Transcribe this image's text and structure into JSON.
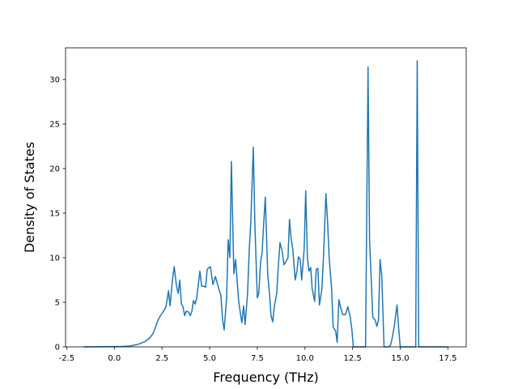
{
  "chart_data": {
    "type": "line",
    "xlabel": "Frequency (THz)",
    "ylabel": "Density of States",
    "xlim": [
      -2.56,
      18.46
    ],
    "ylim": [
      0,
      33.55
    ],
    "xticks": [
      {
        "value": -2.5,
        "label": "-2.5"
      },
      {
        "value": 0,
        "label": "0.0"
      },
      {
        "value": 2.5,
        "label": "2.5"
      },
      {
        "value": 5,
        "label": "5.0"
      },
      {
        "value": 7.5,
        "label": "7.5"
      },
      {
        "value": 10,
        "label": "10.0"
      },
      {
        "value": 12.5,
        "label": "12.5"
      },
      {
        "value": 15,
        "label": "15.0"
      },
      {
        "value": 17.5,
        "label": "17.5"
      }
    ],
    "yticks": [
      0,
      5,
      10,
      15,
      20,
      25,
      30
    ],
    "grid": false,
    "series": [
      {
        "color": "#1f77b4",
        "x": [
          -1.61,
          0.42,
          0.85,
          1.27,
          1.61,
          1.86,
          2.03,
          2.16,
          2.29,
          2.42,
          2.58,
          2.71,
          2.84,
          2.92,
          3.05,
          3.14,
          3.26,
          3.35,
          3.43,
          3.52,
          3.6,
          3.69,
          3.77,
          3.9,
          3.98,
          4.07,
          4.15,
          4.24,
          4.32,
          4.49,
          4.58,
          4.7,
          4.79,
          4.87,
          5.04,
          5.17,
          5.3,
          5.51,
          5.59,
          5.68,
          5.76,
          5.89,
          5.97,
          6.06,
          6.14,
          6.27,
          6.36,
          6.44,
          6.53,
          6.61,
          6.69,
          6.78,
          6.86,
          6.99,
          7.08,
          7.16,
          7.29,
          7.37,
          7.5,
          7.58,
          7.67,
          7.75,
          7.84,
          7.92,
          8.05,
          8.14,
          8.22,
          8.31,
          8.39,
          8.52,
          8.6,
          8.69,
          8.81,
          8.9,
          8.98,
          9.11,
          9.19,
          9.28,
          9.36,
          9.49,
          9.58,
          9.66,
          9.75,
          9.83,
          9.96,
          10.04,
          10.13,
          10.21,
          10.3,
          10.38,
          10.51,
          10.59,
          10.68,
          10.76,
          10.89,
          10.97,
          11.1,
          11.19,
          11.27,
          11.4,
          11.48,
          11.61,
          11.69,
          11.78,
          11.86,
          11.99,
          12.12,
          12.25,
          12.37,
          12.46,
          12.54,
          13.18,
          13.31,
          13.39,
          13.56,
          13.69,
          13.77,
          13.86,
          13.94,
          14.03,
          14.15,
          14.41,
          14.49,
          14.58,
          14.7,
          14.83,
          14.92,
          15.0,
          15.81,
          15.89,
          15.97,
          17.5
        ],
        "values": [
          0,
          0.05,
          0.1,
          0.3,
          0.6,
          1.0,
          1.5,
          2.2,
          3.0,
          3.5,
          4.0,
          4.5,
          6.3,
          4.6,
          7.5,
          9.0,
          6.8,
          6.0,
          7.5,
          4.8,
          4.5,
          3.5,
          4.0,
          3.9,
          3.5,
          4.0,
          5.2,
          4.8,
          5.5,
          8.5,
          6.8,
          6.8,
          6.7,
          8.7,
          9.0,
          7.0,
          7.9,
          6.3,
          5.8,
          3.0,
          1.9,
          5.5,
          12.0,
          10.0,
          20.8,
          8.2,
          9.8,
          7.5,
          5.0,
          3.8,
          2.7,
          4.6,
          2.5,
          6.0,
          11.0,
          14.0,
          22.4,
          14.0,
          5.5,
          6.0,
          9.5,
          10.5,
          14.0,
          16.8,
          8.0,
          6.0,
          3.5,
          2.8,
          4.5,
          6.0,
          9.0,
          11.7,
          10.7,
          9.2,
          9.5,
          10.0,
          14.3,
          12.0,
          11.0,
          7.5,
          8.5,
          10.1,
          9.8,
          7.5,
          11.0,
          17.5,
          10.0,
          8.5,
          8.9,
          6.5,
          5.1,
          8.7,
          8.8,
          4.7,
          6.5,
          10.0,
          17.2,
          14.0,
          10.0,
          6.5,
          2.2,
          1.8,
          0.5,
          5.3,
          4.5,
          3.6,
          3.6,
          4.5,
          3.4,
          2.0,
          0,
          0,
          31.4,
          12.0,
          3.3,
          3.0,
          2.3,
          3.0,
          9.8,
          8.0,
          0,
          0,
          0.2,
          1.0,
          2.5,
          4.7,
          2.0,
          0,
          0,
          32.1,
          0,
          0
        ]
      }
    ]
  }
}
